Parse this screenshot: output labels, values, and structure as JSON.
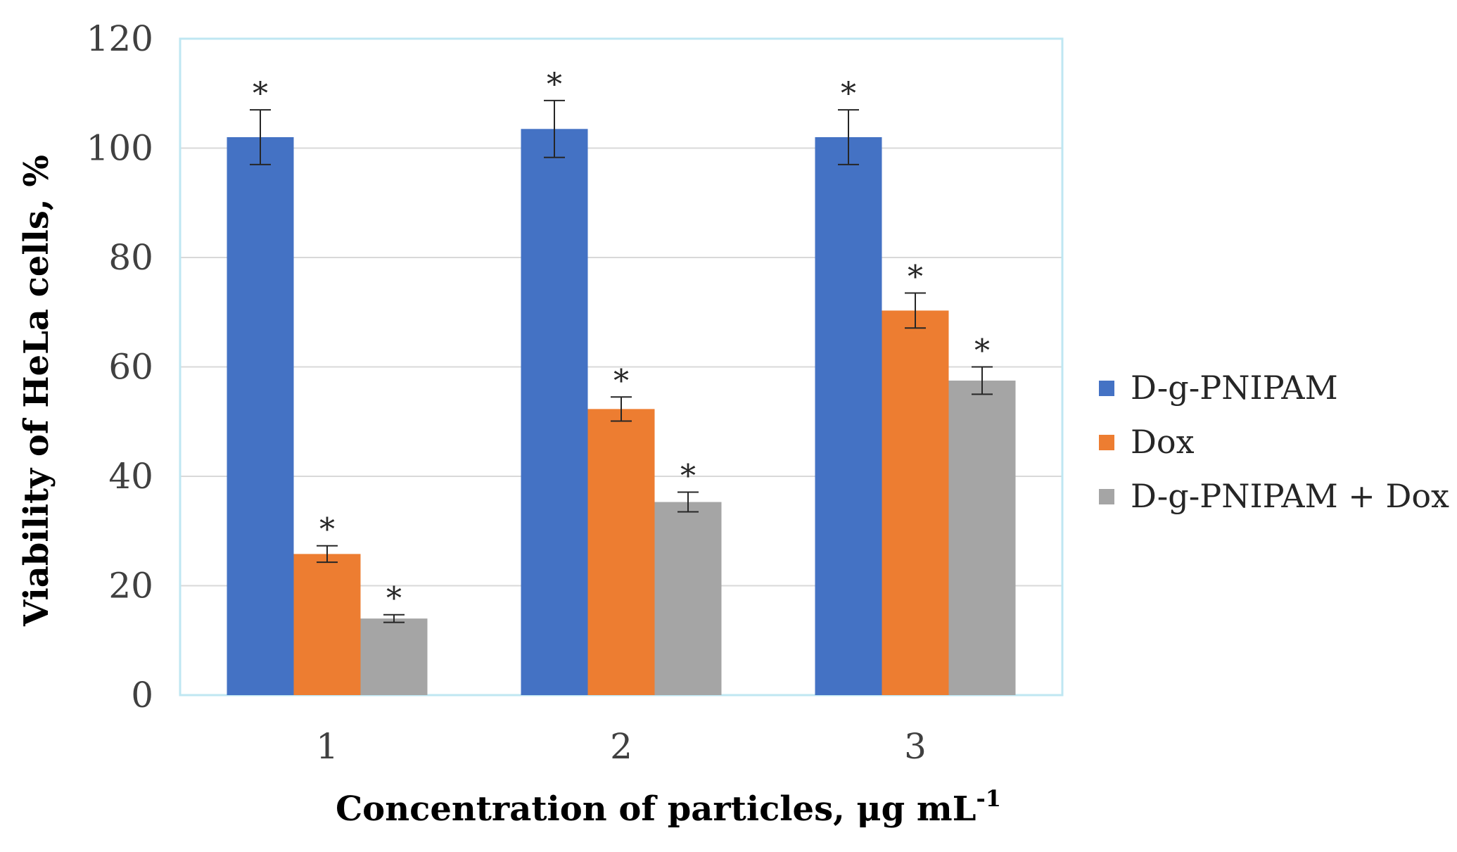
{
  "chart_data": {
    "type": "bar",
    "title": "",
    "xlabel": "Concentration of particles, μg mL",
    "xlabel_superscript": "-1",
    "ylabel": "Viability of HeLa cells, %",
    "ylim": [
      0,
      120
    ],
    "yticks": [
      0,
      20,
      40,
      60,
      80,
      100,
      120
    ],
    "grid": true,
    "legend_position": "right",
    "categories": [
      "1",
      "2",
      "3"
    ],
    "series": [
      {
        "name": "D-g-PNIPAM",
        "color": "#4472C4",
        "values": [
          102,
          103.5,
          102
        ],
        "errors": [
          5,
          5.2,
          5
        ],
        "significance": [
          "*",
          "*",
          "*"
        ]
      },
      {
        "name": "Dox",
        "color": "#ED7D31",
        "values": [
          25.8,
          52.3,
          70.3
        ],
        "errors": [
          1.5,
          2.2,
          3.2
        ],
        "significance": [
          "*",
          "*",
          "*"
        ]
      },
      {
        "name": "D-g-PNIPAM + Dox",
        "color": "#A5A5A5",
        "values": [
          14,
          35.3,
          57.5
        ],
        "errors": [
          0.7,
          1.8,
          2.5
        ],
        "significance": [
          "*",
          "*",
          "*"
        ]
      }
    ]
  }
}
